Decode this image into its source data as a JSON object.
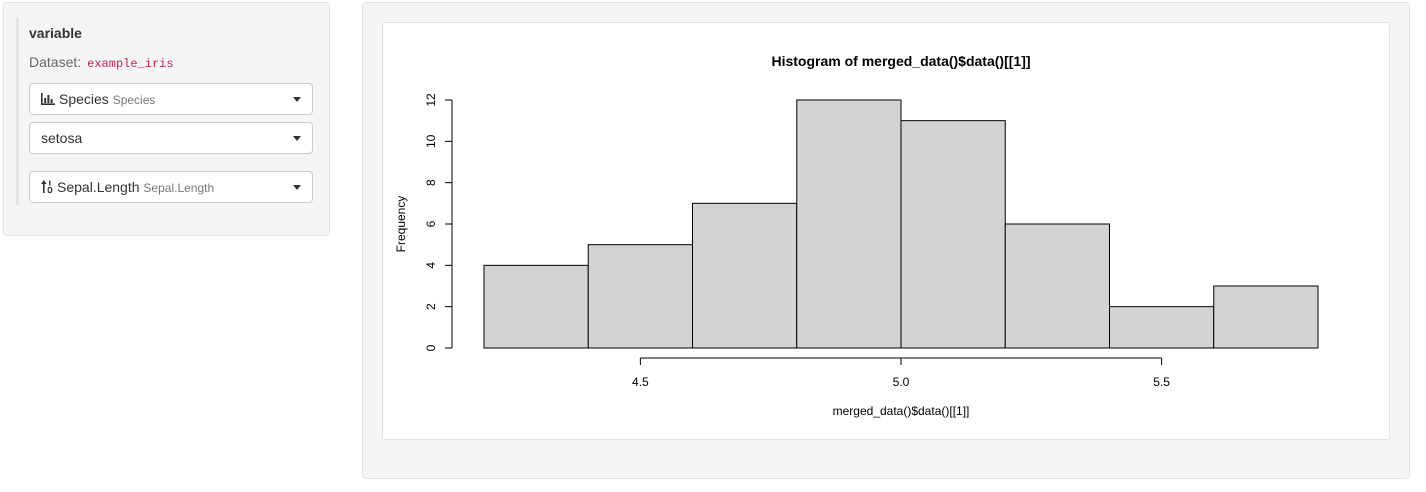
{
  "sidebar": {
    "variable_title": "variable",
    "dataset_label": "Dataset:",
    "dataset_name": "example_iris",
    "selects": [
      {
        "icon": "bar-chart-icon",
        "label": "Species",
        "sublabel": "Species"
      },
      {
        "label": "setosa"
      },
      {
        "icon": "sort-numeric-icon",
        "label": "Sepal.Length",
        "sublabel": "Sepal.Length"
      }
    ]
  },
  "chart_data": {
    "type": "bar",
    "title": "Histogram of merged_data()$data()[[1]]",
    "xlabel": "merged_data()$data()[[1]]",
    "ylabel": "Frequency",
    "bins": [
      {
        "from": 4.2,
        "to": 4.4,
        "count": 4
      },
      {
        "from": 4.4,
        "to": 4.6,
        "count": 5
      },
      {
        "from": 4.6,
        "to": 4.8,
        "count": 7
      },
      {
        "from": 4.8,
        "to": 5.0,
        "count": 12
      },
      {
        "from": 5.0,
        "to": 5.2,
        "count": 11
      },
      {
        "from": 5.2,
        "to": 5.4,
        "count": 6
      },
      {
        "from": 5.4,
        "to": 5.6,
        "count": 2
      },
      {
        "from": 5.6,
        "to": 5.8,
        "count": 3
      }
    ],
    "xlim": [
      4.2,
      5.8
    ],
    "ylim": [
      0,
      12
    ],
    "x_ticks": [
      4.5,
      5.0,
      5.5
    ],
    "x_tick_labels": [
      "4.5",
      "5.0",
      "5.5"
    ],
    "y_ticks": [
      0,
      2,
      4,
      6,
      8,
      10,
      12
    ],
    "y_tick_labels": [
      "0",
      "2",
      "4",
      "6",
      "8",
      "10",
      "12"
    ],
    "bar_fill": "#d3d3d3",
    "grid": false
  }
}
